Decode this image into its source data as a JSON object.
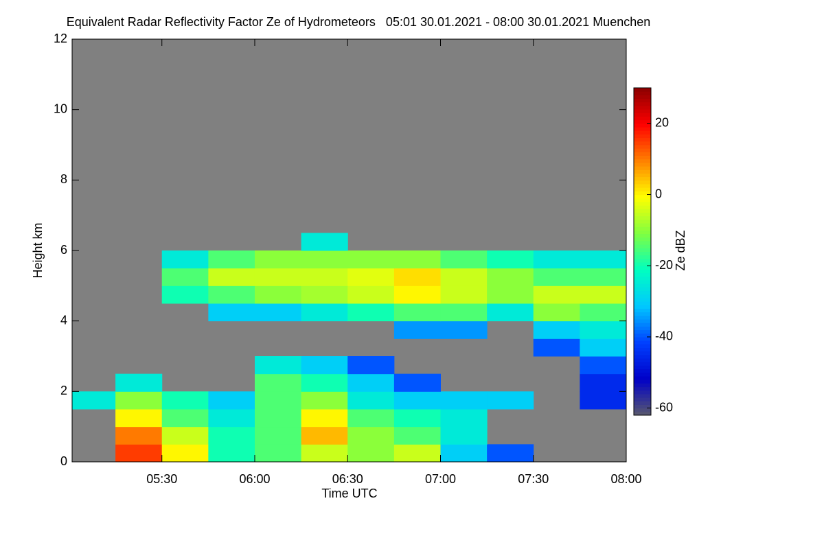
{
  "chart_data": {
    "type": "heatmap",
    "title": "Equivalent Radar Reflectivity Factor Ze of Hydrometeors   05:01 30.01.2021 - 08:00 30.01.2021 Muenchen",
    "xlabel": "Time UTC",
    "ylabel": "Height km",
    "colorbar_label": "Ze dBZ",
    "background": "#808080",
    "xlim": [
      301,
      480
    ],
    "xticks": [
      {
        "value": 330,
        "label": "05:30"
      },
      {
        "value": 360,
        "label": "06:00"
      },
      {
        "value": 390,
        "label": "06:30"
      },
      {
        "value": 420,
        "label": "07:00"
      },
      {
        "value": 450,
        "label": "07:30"
      },
      {
        "value": 480,
        "label": "08:00"
      }
    ],
    "ylim": [
      0,
      12
    ],
    "yticks": [
      0,
      2,
      4,
      6,
      8,
      10,
      12
    ],
    "clim": [
      -62,
      30
    ],
    "cticks": [
      -60,
      -40,
      -20,
      0,
      20
    ],
    "colormap": [
      "#5a5a6e",
      "#0000c8",
      "#0040ff",
      "#00c8ff",
      "#00ffc0",
      "#80ff40",
      "#ffff00",
      "#ff8000",
      "#ff0000",
      "#8b0000"
    ],
    "x_edges": [
      301,
      315,
      330,
      345,
      360,
      375,
      390,
      405,
      420,
      435,
      450,
      465,
      480
    ],
    "y_edges": [
      0,
      0.5,
      1,
      1.5,
      2,
      2.5,
      3,
      3.5,
      4,
      4.5,
      5,
      5.5,
      6,
      6.5
    ],
    "z": [
      [
        null,
        15,
        0,
        -20,
        -15,
        -5,
        -10,
        -5,
        -30,
        -40,
        null,
        null
      ],
      [
        null,
        10,
        -5,
        -20,
        -15,
        5,
        -10,
        -15,
        -25,
        null,
        null,
        null
      ],
      [
        null,
        0,
        -15,
        -25,
        -15,
        0,
        -15,
        -20,
        -25,
        null,
        null,
        null
      ],
      [
        -25,
        -10,
        -20,
        -30,
        -15,
        -10,
        -25,
        -30,
        -30,
        -30,
        null,
        -45
      ],
      [
        null,
        -25,
        null,
        null,
        -15,
        -20,
        -30,
        -40,
        null,
        null,
        null,
        -45
      ],
      [
        null,
        null,
        null,
        null,
        -25,
        -30,
        -40,
        null,
        null,
        null,
        null,
        -40
      ],
      [
        null,
        null,
        null,
        null,
        null,
        null,
        null,
        null,
        null,
        null,
        -40,
        -30
      ],
      [
        null,
        null,
        null,
        null,
        null,
        null,
        null,
        -35,
        -35,
        null,
        -30,
        -25
      ],
      [
        null,
        null,
        null,
        -30,
        -30,
        -25,
        -20,
        -15,
        -15,
        -25,
        -10,
        -15
      ],
      [
        null,
        null,
        -20,
        -15,
        -10,
        -8,
        -5,
        0,
        -5,
        -10,
        -5,
        -5
      ],
      [
        null,
        null,
        -15,
        -5,
        -5,
        -5,
        -3,
        2,
        -5,
        -10,
        -15,
        -15
      ],
      [
        null,
        null,
        -25,
        -15,
        -10,
        -10,
        -10,
        -10,
        -15,
        -20,
        -25,
        -25
      ],
      [
        null,
        null,
        null,
        null,
        null,
        -25,
        null,
        null,
        null,
        null,
        null,
        null
      ]
    ]
  }
}
